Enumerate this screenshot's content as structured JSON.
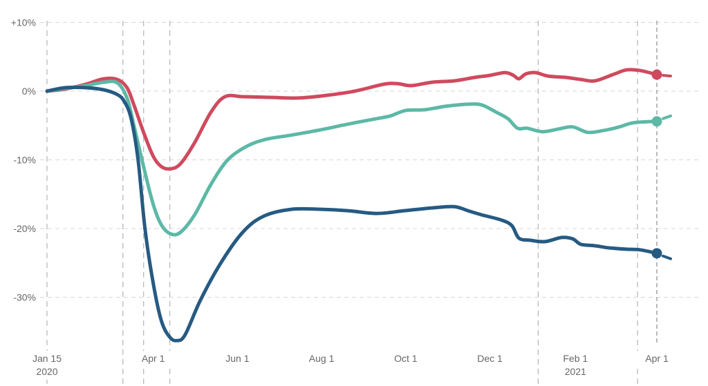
{
  "chart_data": {
    "type": "line",
    "title": "",
    "xlabel": "",
    "ylabel": "",
    "x_range": [
      "2020-01-15",
      "2021-04-08"
    ],
    "ylim": [
      -37,
      10
    ],
    "y_ticks": [
      {
        "value": 10,
        "label": "+10%"
      },
      {
        "value": 0,
        "label": "0%"
      },
      {
        "value": -10,
        "label": "-10%"
      },
      {
        "value": -20,
        "label": "-20%"
      },
      {
        "value": -30,
        "label": "-30%"
      }
    ],
    "x_ticks": [
      {
        "date": "2020-01-15",
        "label": "Jan 15",
        "sublabel": "2020"
      },
      {
        "date": "2020-04-01",
        "label": "Apr 1",
        "sublabel": ""
      },
      {
        "date": "2020-06-01",
        "label": "Jun 1",
        "sublabel": ""
      },
      {
        "date": "2020-08-01",
        "label": "Aug 1",
        "sublabel": ""
      },
      {
        "date": "2020-10-01",
        "label": "Oct 1",
        "sublabel": ""
      },
      {
        "date": "2020-12-01",
        "label": "Dec 1",
        "sublabel": ""
      },
      {
        "date": "2021-02-01",
        "label": "Feb 1",
        "sublabel": "2021"
      },
      {
        "date": "2021-04-01",
        "label": "Apr 1",
        "sublabel": ""
      }
    ],
    "vertical_guides": [
      "2020-01-15",
      "2020-03-10",
      "2020-03-25",
      "2020-04-13",
      "2021-01-05",
      "2021-03-18"
    ],
    "current_date": "2021-04-01",
    "grid": true,
    "series": [
      {
        "color": "#cf4a5e",
        "tail": [
          [
            "2021-04-01",
            2.4
          ],
          [
            "2021-04-08",
            2.2
          ]
        ],
        "points": [
          [
            "2020-01-15",
            0
          ],
          [
            "2020-01-28",
            0.3
          ],
          [
            "2020-02-12",
            1.0
          ],
          [
            "2020-02-25",
            1.8
          ],
          [
            "2020-03-06",
            1.7
          ],
          [
            "2020-03-13",
            0.5
          ],
          [
            "2020-03-18",
            -2.0
          ],
          [
            "2020-03-25",
            -6.0
          ],
          [
            "2020-04-01",
            -9.5
          ],
          [
            "2020-04-07",
            -11.0
          ],
          [
            "2020-04-14",
            -11.3
          ],
          [
            "2020-04-21",
            -10.5
          ],
          [
            "2020-05-01",
            -7.5
          ],
          [
            "2020-05-13",
            -3.0
          ],
          [
            "2020-05-23",
            -0.8
          ],
          [
            "2020-06-05",
            -0.8
          ],
          [
            "2020-06-25",
            -0.9
          ],
          [
            "2020-07-15",
            -1.0
          ],
          [
            "2020-08-05",
            -0.6
          ],
          [
            "2020-08-25",
            0.0
          ],
          [
            "2020-09-15",
            1.0
          ],
          [
            "2020-09-25",
            1.1
          ],
          [
            "2020-10-05",
            0.8
          ],
          [
            "2020-10-20",
            1.3
          ],
          [
            "2020-11-05",
            1.5
          ],
          [
            "2020-11-20",
            2.0
          ],
          [
            "2020-12-01",
            2.3
          ],
          [
            "2020-12-12",
            2.7
          ],
          [
            "2020-12-18",
            2.3
          ],
          [
            "2020-12-22",
            1.8
          ],
          [
            "2020-12-27",
            2.5
          ],
          [
            "2021-01-03",
            2.7
          ],
          [
            "2021-01-12",
            2.2
          ],
          [
            "2021-01-25",
            2.0
          ],
          [
            "2021-02-05",
            1.7
          ],
          [
            "2021-02-15",
            1.5
          ],
          [
            "2021-02-28",
            2.4
          ],
          [
            "2021-03-10",
            3.1
          ],
          [
            "2021-03-20",
            3.0
          ],
          [
            "2021-04-01",
            2.4
          ]
        ]
      },
      {
        "color": "#5db8a6",
        "tail": [
          [
            "2021-04-01",
            -4.4
          ],
          [
            "2021-04-08",
            -3.6
          ]
        ],
        "points": [
          [
            "2020-01-15",
            0
          ],
          [
            "2020-01-28",
            0.4
          ],
          [
            "2020-02-12",
            0.8
          ],
          [
            "2020-02-25",
            1.3
          ],
          [
            "2020-03-06",
            1.2
          ],
          [
            "2020-03-13",
            -1.0
          ],
          [
            "2020-03-18",
            -5.0
          ],
          [
            "2020-03-25",
            -11.0
          ],
          [
            "2020-04-01",
            -16.5
          ],
          [
            "2020-04-07",
            -19.5
          ],
          [
            "2020-04-14",
            -20.8
          ],
          [
            "2020-04-21",
            -20.5
          ],
          [
            "2020-05-01",
            -18.0
          ],
          [
            "2020-05-13",
            -13.5
          ],
          [
            "2020-05-25",
            -10.0
          ],
          [
            "2020-06-08",
            -8.0
          ],
          [
            "2020-06-22",
            -7.0
          ],
          [
            "2020-07-10",
            -6.4
          ],
          [
            "2020-08-01",
            -5.6
          ],
          [
            "2020-08-20",
            -4.8
          ],
          [
            "2020-09-10",
            -4.0
          ],
          [
            "2020-09-20",
            -3.6
          ],
          [
            "2020-10-01",
            -2.8
          ],
          [
            "2020-10-15",
            -2.7
          ],
          [
            "2020-10-30",
            -2.2
          ],
          [
            "2020-11-15",
            -1.9
          ],
          [
            "2020-11-25",
            -2.0
          ],
          [
            "2020-12-05",
            -3.0
          ],
          [
            "2020-12-14",
            -4.0
          ],
          [
            "2020-12-21",
            -5.4
          ],
          [
            "2020-12-28",
            -5.4
          ],
          [
            "2021-01-08",
            -5.9
          ],
          [
            "2021-01-20",
            -5.5
          ],
          [
            "2021-01-30",
            -5.2
          ],
          [
            "2021-02-10",
            -6.0
          ],
          [
            "2021-02-22",
            -5.7
          ],
          [
            "2021-03-05",
            -5.2
          ],
          [
            "2021-03-15",
            -4.6
          ],
          [
            "2021-04-01",
            -4.4
          ]
        ]
      },
      {
        "color": "#265a82",
        "tail": [
          [
            "2021-04-01",
            -23.6
          ],
          [
            "2021-04-08",
            -24.4
          ]
        ],
        "points": [
          [
            "2020-01-15",
            0
          ],
          [
            "2020-01-28",
            0.5
          ],
          [
            "2020-02-12",
            0.5
          ],
          [
            "2020-02-25",
            0.2
          ],
          [
            "2020-03-06",
            -0.5
          ],
          [
            "2020-03-11",
            -1.5
          ],
          [
            "2020-03-16",
            -4.0
          ],
          [
            "2020-03-21",
            -10.0
          ],
          [
            "2020-03-26",
            -20.0
          ],
          [
            "2020-04-01",
            -28.0
          ],
          [
            "2020-04-07",
            -33.5
          ],
          [
            "2020-04-13",
            -35.8
          ],
          [
            "2020-04-18",
            -36.3
          ],
          [
            "2020-04-24",
            -35.5
          ],
          [
            "2020-05-05",
            -30.5
          ],
          [
            "2020-05-20",
            -25.0
          ],
          [
            "2020-06-05",
            -20.5
          ],
          [
            "2020-06-20",
            -18.2
          ],
          [
            "2020-07-10",
            -17.2
          ],
          [
            "2020-08-01",
            -17.2
          ],
          [
            "2020-08-20",
            -17.4
          ],
          [
            "2020-09-10",
            -17.8
          ],
          [
            "2020-09-30",
            -17.4
          ],
          [
            "2020-10-20",
            -17.0
          ],
          [
            "2020-11-05",
            -16.8
          ],
          [
            "2020-11-15",
            -17.4
          ],
          [
            "2020-11-25",
            -18.0
          ],
          [
            "2020-12-10",
            -18.8
          ],
          [
            "2020-12-17",
            -19.6
          ],
          [
            "2020-12-22",
            -21.4
          ],
          [
            "2020-12-30",
            -21.7
          ],
          [
            "2021-01-10",
            -21.9
          ],
          [
            "2021-01-22",
            -21.3
          ],
          [
            "2021-01-30",
            -21.5
          ],
          [
            "2021-02-05",
            -22.3
          ],
          [
            "2021-02-15",
            -22.5
          ],
          [
            "2021-02-25",
            -22.8
          ],
          [
            "2021-03-10",
            -23.0
          ],
          [
            "2021-03-20",
            -23.1
          ],
          [
            "2021-04-01",
            -23.6
          ]
        ]
      }
    ]
  }
}
